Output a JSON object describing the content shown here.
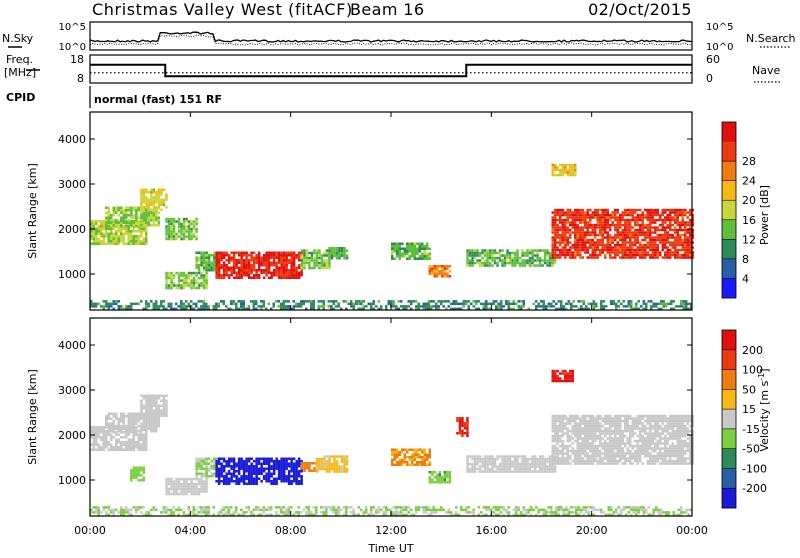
{
  "header": {
    "title": "Christmas Valley West (fitACF)",
    "beam": "Beam 16",
    "date": "02/Oct/2015"
  },
  "noise_panel": {
    "left_label": "N.Sky",
    "right_label": "N.Search",
    "left_ticks": [
      "10^5",
      "10^0"
    ],
    "right_ticks": [
      "10^5",
      "10^0"
    ]
  },
  "freq_panel": {
    "left_label_1": "Freq.",
    "left_label_2": "[MHz]",
    "left_ticks": [
      "18",
      "8"
    ],
    "right_label": "Nave",
    "right_ticks": [
      "60",
      "0"
    ]
  },
  "cpid": {
    "label": "CPID",
    "value": "normal (fast) 151 RF"
  },
  "colors": {
    "power_scale": [
      "#1a1aff",
      "#2a5fa8",
      "#2f8a5a",
      "#5fbf3a",
      "#c8d83c",
      "#f5b818",
      "#f07b10",
      "#ec3a10",
      "#e01010"
    ],
    "velocity_scale": [
      "#1a1ad8",
      "#2a5fa8",
      "#2f8a5a",
      "#7cd040",
      "#c8c8c8",
      "#f5b818",
      "#f07b10",
      "#ec3a10",
      "#e01010"
    ]
  },
  "chart_data": [
    {
      "type": "line",
      "name": "noise",
      "series": [
        {
          "name": "N.Sky",
          "style": "solid"
        },
        {
          "name": "N.Search",
          "style": "dotted"
        }
      ]
    },
    {
      "type": "line",
      "name": "frequency",
      "xlabel": "Time UT",
      "x_ticks": [
        "00:00",
        "04:00",
        "08:00",
        "12:00",
        "16:00",
        "20:00",
        "00:00"
      ],
      "freq_steps": [
        {
          "start_h": 0,
          "end_h": 3.0,
          "mhz": 14.5
        },
        {
          "start_h": 3.0,
          "end_h": 15.0,
          "mhz": 10.4
        },
        {
          "start_h": 15.0,
          "end_h": 24.0,
          "mhz": 14.5
        }
      ],
      "nave": 22
    },
    {
      "type": "heatmap",
      "name": "power",
      "ylabel": "Slant Range [km]",
      "y_ticks": [
        "1000",
        "2000",
        "3000",
        "4000"
      ],
      "ylim": [
        200,
        4600
      ],
      "xlim": [
        0,
        24
      ],
      "colorbar_label": "Power [dB]",
      "colorbar_ticks": [
        "4",
        "8",
        "12",
        "16",
        "20",
        "24",
        "28"
      ],
      "clim": [
        0,
        30
      ],
      "regions": [
        {
          "t0": 0.0,
          "t1": 2.2,
          "r0": 1650,
          "r1": 2200,
          "val": 14
        },
        {
          "t0": 0.6,
          "t1": 2.7,
          "r0": 2100,
          "r1": 2500,
          "val": 13
        },
        {
          "t0": 2.0,
          "t1": 3.0,
          "r0": 2400,
          "r1": 2900,
          "val": 16
        },
        {
          "t0": 3.0,
          "t1": 4.2,
          "r0": 1750,
          "r1": 2250,
          "val": 12
        },
        {
          "t0": 3.0,
          "t1": 4.6,
          "r0": 700,
          "r1": 1050,
          "val": 12
        },
        {
          "t0": 4.2,
          "t1": 5.0,
          "r0": 1100,
          "r1": 1500,
          "val": 11
        },
        {
          "t0": 5.0,
          "t1": 8.4,
          "r0": 900,
          "r1": 1500,
          "val": 27
        },
        {
          "t0": 8.4,
          "t1": 9.5,
          "r0": 1150,
          "r1": 1550,
          "val": 12
        },
        {
          "t0": 9.5,
          "t1": 10.2,
          "r0": 1350,
          "r1": 1600,
          "val": 10
        },
        {
          "t0": 12.0,
          "t1": 13.5,
          "r0": 1350,
          "r1": 1700,
          "val": 11
        },
        {
          "t0": 13.5,
          "t1": 14.3,
          "r0": 950,
          "r1": 1200,
          "val": 22
        },
        {
          "t0": 15.0,
          "t1": 18.5,
          "r0": 1200,
          "r1": 1550,
          "val": 11
        },
        {
          "t0": 18.4,
          "t1": 24.0,
          "r0": 1350,
          "r1": 2450,
          "val": 26
        },
        {
          "t0": 18.4,
          "t1": 19.3,
          "r0": 3200,
          "r1": 3450,
          "val": 18
        },
        {
          "t0": 0.0,
          "t1": 24.0,
          "r0": 230,
          "r1": 420,
          "val": 8
        }
      ]
    },
    {
      "type": "heatmap",
      "name": "velocity",
      "ylabel": "Slant Range [km]",
      "y_ticks": [
        "1000",
        "2000",
        "3000",
        "4000"
      ],
      "ylim": [
        200,
        4600
      ],
      "xlim": [
        0,
        24
      ],
      "colorbar_label": "Velocity [m s^-1]",
      "colorbar_ticks": [
        "200",
        "100",
        "50",
        "15",
        "-15",
        "-50",
        "-100",
        "-200"
      ],
      "clim": [
        -250,
        250
      ],
      "regions": [
        {
          "t0": 0.0,
          "t1": 2.2,
          "r0": 1650,
          "r1": 2200,
          "val": 0
        },
        {
          "t0": 0.6,
          "t1": 2.7,
          "r0": 2100,
          "r1": 2500,
          "val": 0
        },
        {
          "t0": 2.0,
          "t1": 3.0,
          "r0": 2400,
          "r1": 2900,
          "val": 0
        },
        {
          "t0": 3.0,
          "t1": 4.6,
          "r0": 700,
          "r1": 1050,
          "val": 0
        },
        {
          "t0": 1.6,
          "t1": 2.1,
          "r0": 1000,
          "r1": 1300,
          "val": -60
        },
        {
          "t0": 4.2,
          "t1": 5.0,
          "r0": 1100,
          "r1": 1500,
          "val": -30
        },
        {
          "t0": 5.0,
          "t1": 8.4,
          "r0": 900,
          "r1": 1500,
          "val": -220
        },
        {
          "t0": 8.4,
          "t1": 9.0,
          "r0": 1200,
          "r1": 1400,
          "val": 120
        },
        {
          "t0": 9.0,
          "t1": 10.2,
          "r0": 1200,
          "r1": 1550,
          "val": 40
        },
        {
          "t0": 12.0,
          "t1": 13.5,
          "r0": 1350,
          "r1": 1700,
          "val": 90
        },
        {
          "t0": 13.5,
          "t1": 14.3,
          "r0": 950,
          "r1": 1200,
          "val": -70
        },
        {
          "t0": 14.6,
          "t1": 15.0,
          "r0": 2000,
          "r1": 2400,
          "val": 200
        },
        {
          "t0": 15.0,
          "t1": 18.5,
          "r0": 1200,
          "r1": 1550,
          "val": 0
        },
        {
          "t0": 18.4,
          "t1": 24.0,
          "r0": 1350,
          "r1": 2450,
          "val": 0
        },
        {
          "t0": 18.4,
          "t1": 19.2,
          "r0": 3200,
          "r1": 3450,
          "val": 210
        },
        {
          "t0": 0.0,
          "t1": 24.0,
          "r0": 230,
          "r1": 420,
          "val": -30
        }
      ]
    }
  ]
}
